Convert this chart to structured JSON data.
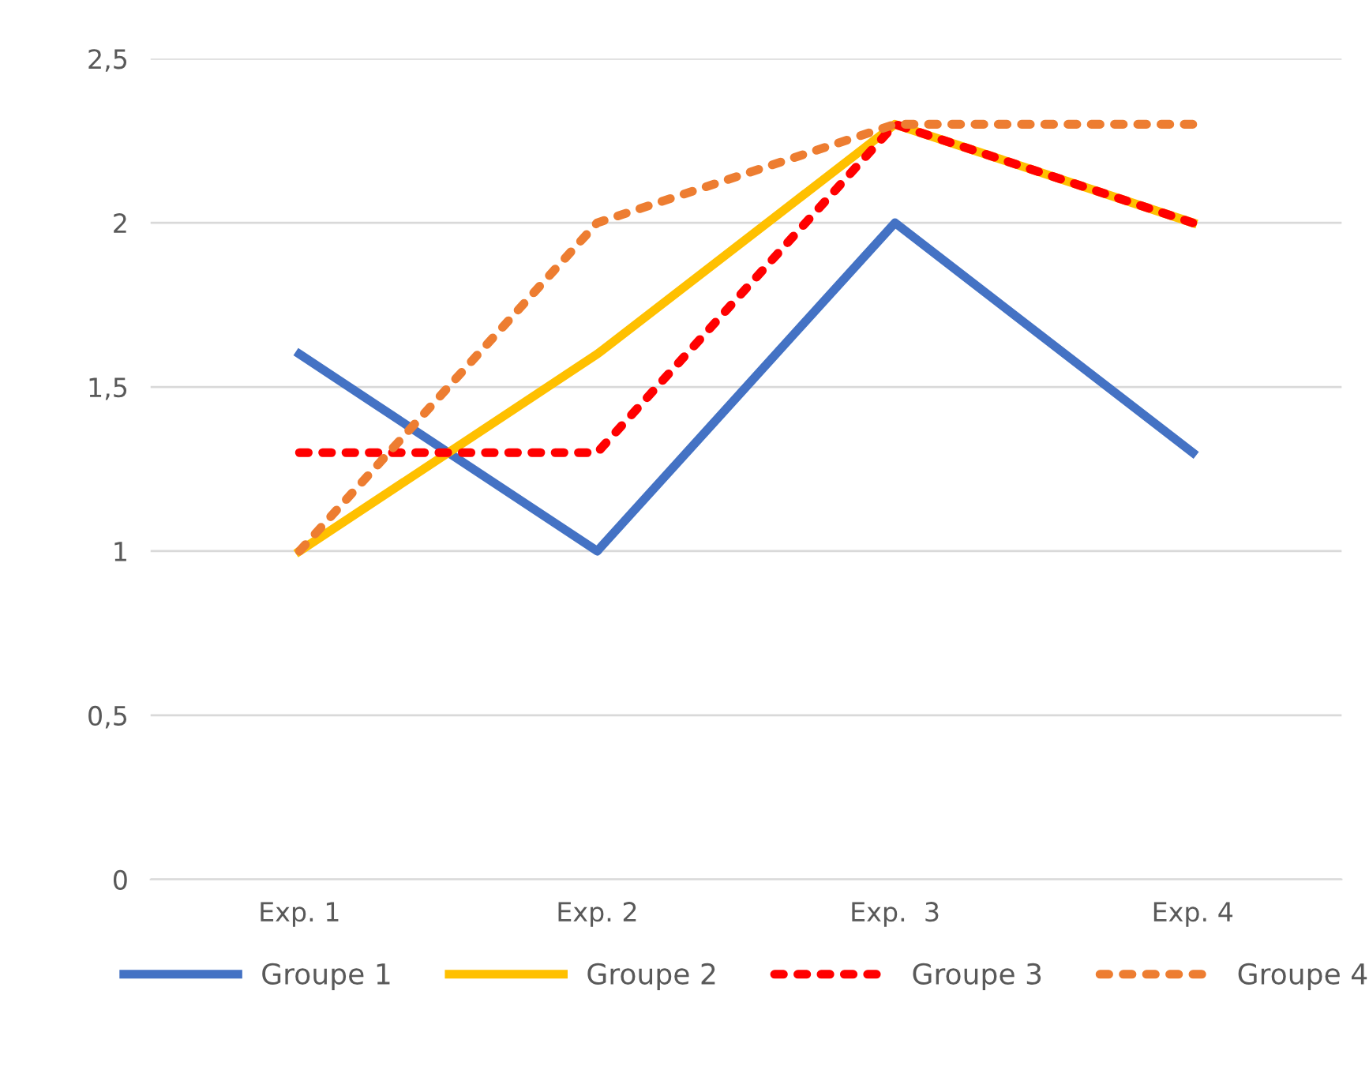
{
  "chart_data": {
    "type": "line",
    "categories": [
      "Exp. 1",
      "Exp. 2",
      "Exp.  3",
      "Exp. 4"
    ],
    "series": [
      {
        "name": "Groupe 1",
        "color": "#4472c4",
        "values": [
          1.6,
          1.0,
          2.0,
          1.3
        ],
        "line_style": "solid"
      },
      {
        "name": "Groupe 2",
        "color": "#ffc000",
        "values": [
          1.0,
          1.6,
          2.3,
          2.0
        ],
        "line_style": "solid"
      },
      {
        "name": "Groupe 3",
        "color": "#ff0000",
        "values": [
          1.3,
          1.3,
          2.3,
          2.0
        ],
        "line_style": "dotted"
      },
      {
        "name": "Groupe 4",
        "color": "#ed7d31",
        "values": [
          1.0,
          2.0,
          2.3,
          2.3
        ],
        "line_style": "dotted"
      }
    ],
    "ylim": [
      0,
      2.5
    ],
    "yticks": [
      {
        "value": 0,
        "label": "0"
      },
      {
        "value": 0.5,
        "label": "0,5"
      },
      {
        "value": 1,
        "label": "1"
      },
      {
        "value": 1.5,
        "label": "1,5"
      },
      {
        "value": 2,
        "label": "2"
      },
      {
        "value": 2.5,
        "label": "2,5"
      }
    ],
    "grid": "y",
    "legend": "bottom",
    "marker": "none"
  }
}
